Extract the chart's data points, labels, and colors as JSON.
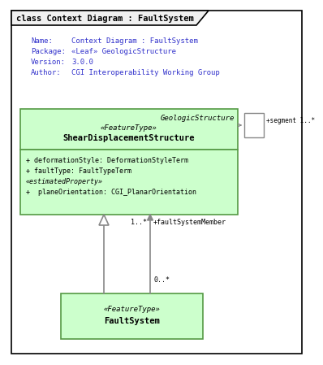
{
  "title": "class Context Diagram : FaultSystem",
  "bg_color": "#ffffff",
  "info_text_color": "#3333cc",
  "info_labels": [
    "Name:",
    "Package:",
    "Version:",
    "Author:"
  ],
  "info_values": [
    "Context Diagram : FaultSystem",
    "«Leaf» GeologicStructure",
    "3.0.0",
    "CGI Interoperability Working Group"
  ],
  "green_fill": "#ccffcc",
  "dark_green_border": "#559944",
  "geologic_structure_italic": "GeologicStructure",
  "feature_type_stereotype": "«FeatureType»",
  "shear_class_name": "ShearDisplacementStructure",
  "attributes": [
    "+ deformationStyle: DeformationStyleTerm",
    "+ faultType: FaultTypeTerm",
    "«estimatedProperty»",
    "+  planeOrientation: CGI_PlanarOrientation"
  ],
  "fault_system_stereotype": "«FeatureType»",
  "fault_system_name": "FaultSystem",
  "segment_label": "+segment 1..*",
  "multiplicity_near_gs": "1..*",
  "association_label": "+faultSystemMember",
  "multiplicity_bottom": "0..*",
  "arrow_color": "#888888",
  "small_box_color": "#ffffff",
  "small_box_border": "#888888"
}
